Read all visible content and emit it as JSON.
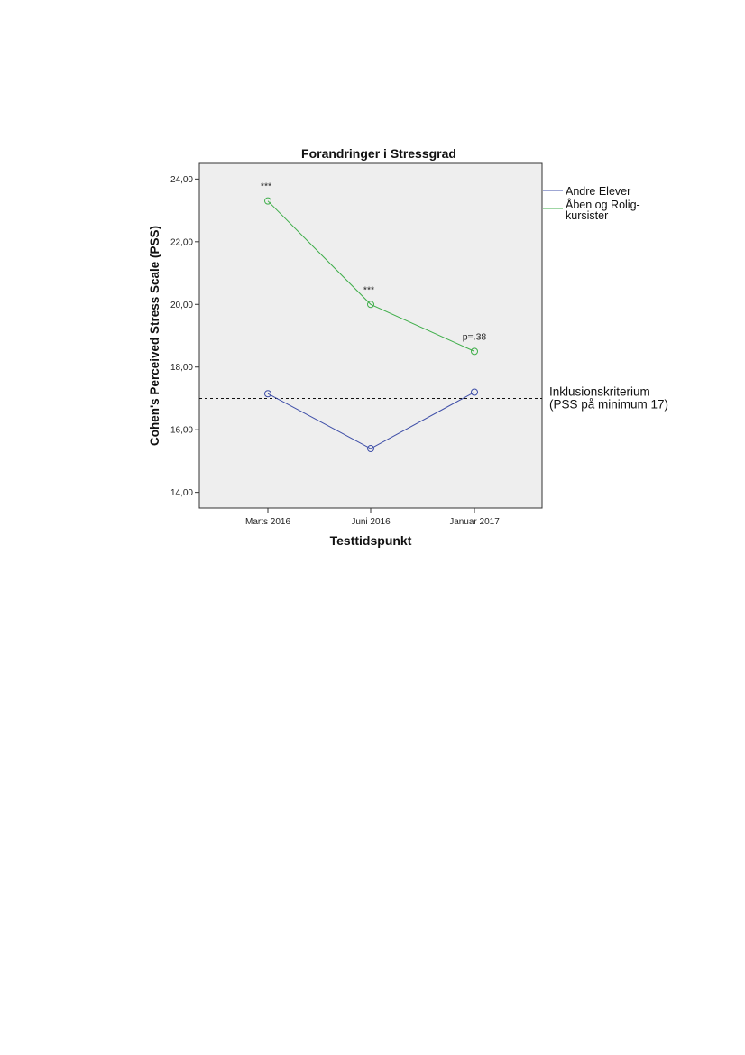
{
  "chart_data": {
    "type": "line",
    "title": "Forandringer i Stressgrad",
    "xlabel": "Testtidspunkt",
    "ylabel": "Cohen's Perceived Stress Scale (PSS)",
    "categories": [
      "Marts 2016",
      "Juni 2016",
      "Januar 2017"
    ],
    "ylim": [
      13.5,
      24.5
    ],
    "yticks": [
      14,
      16,
      18,
      20,
      22,
      24
    ],
    "ytick_labels": [
      "14,00",
      "16,00",
      "18,00",
      "20,00",
      "22,00",
      "24,00"
    ],
    "grid": false,
    "legend_position": "right",
    "series": [
      {
        "name": "Andre Elever",
        "color": "#3f4fa8",
        "values": [
          17.15,
          15.4,
          17.2
        ]
      },
      {
        "name": "Åben og Rolig-kursister",
        "color": "#3fae4a",
        "values": [
          23.3,
          20.0,
          18.5
        ]
      }
    ],
    "legend_lines": [
      "Andre Elever",
      "Åben og Rolig-",
      "kursister"
    ],
    "annotations": [
      {
        "text": "***",
        "category": "Marts 2016",
        "y": 23.3
      },
      {
        "text": "***",
        "category": "Juni 2016",
        "y": 20.0
      },
      {
        "text": "p=.38",
        "category": "Januar 2017",
        "y": 18.5
      }
    ],
    "reference_line": {
      "value": 17,
      "style": "dashed",
      "label_lines": [
        "Inklusionskriterium",
        "(PSS på minimum 17)"
      ]
    }
  }
}
